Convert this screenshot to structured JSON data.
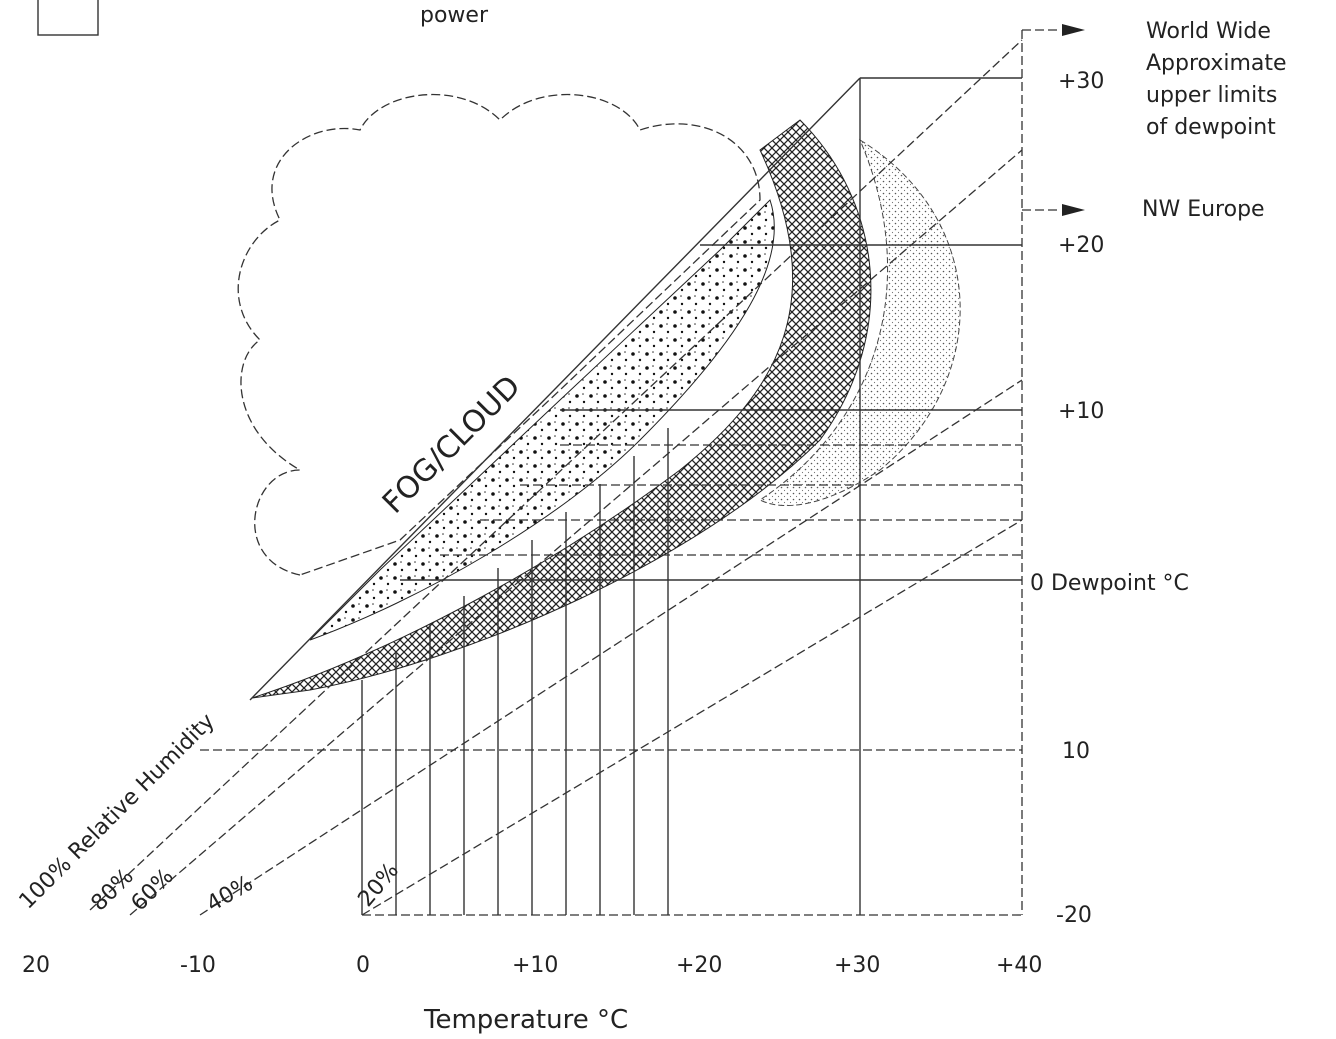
{
  "header": {
    "fragment": "power"
  },
  "annotations": {
    "world_wide": [
      "World Wide",
      "Approximate",
      "upper limits",
      "of dewpoint"
    ],
    "nw_europe": "NW Europe"
  },
  "y_axis": {
    "labels": [
      "+30",
      "+20",
      "+10",
      "0 Dewpoint °C",
      "10",
      "-20"
    ]
  },
  "x_axis": {
    "labels": [
      "20",
      "-10",
      "0",
      "+10",
      "+20",
      "+30",
      "+40"
    ],
    "title": "Temperature °C"
  },
  "regions": {
    "fog": "FOG/CLOUD"
  },
  "humidity_lines": [
    "100% Relative Humidity",
    "80%",
    "60%",
    "40%",
    "20%"
  ]
}
